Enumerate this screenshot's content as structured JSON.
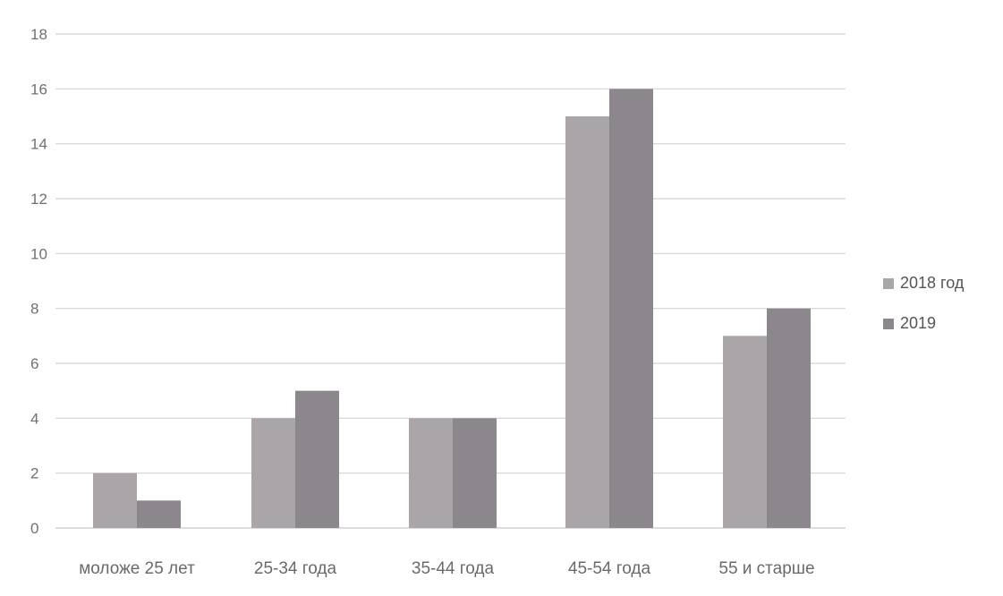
{
  "chart_data": {
    "type": "bar",
    "categories": [
      "моложе 25 лет",
      "25-34 года",
      "35-44 года",
      "45-54 года",
      "55 и старше"
    ],
    "series": [
      {
        "name": "2018 год",
        "values": [
          2,
          4,
          4,
          15,
          7
        ],
        "color": "#a9a5a8"
      },
      {
        "name": "2019",
        "values": [
          1,
          5,
          4,
          16,
          8
        ],
        "color": "#8c878d"
      }
    ],
    "title": "",
    "xlabel": "",
    "ylabel": "",
    "ylim": [
      0,
      18
    ],
    "yticks": [
      0,
      2,
      4,
      6,
      8,
      10,
      12,
      14,
      16,
      18
    ],
    "grid": true,
    "legend_position": "right"
  }
}
